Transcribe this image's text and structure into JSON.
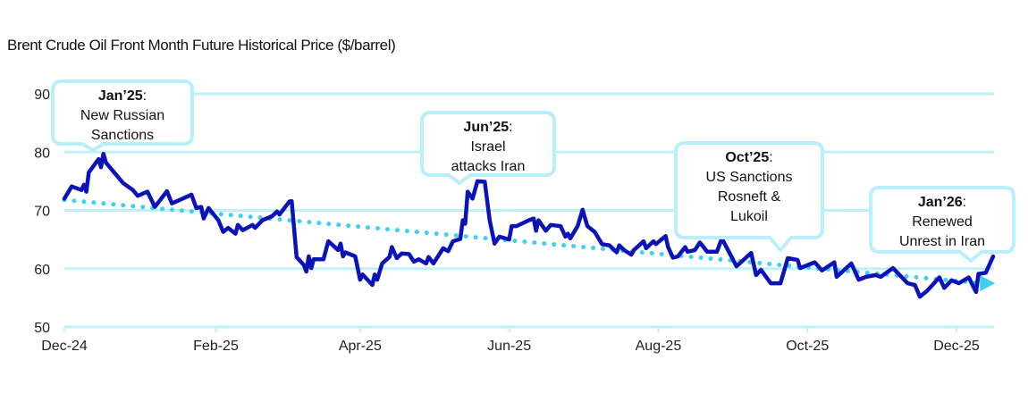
{
  "chart_data": {
    "type": "line",
    "title": "Brent Crude Oil Front Month Future Historical Price ($/barrel)",
    "xlabel": "",
    "ylabel": "",
    "ylim": [
      50,
      90
    ],
    "y_ticks": [
      "50",
      "60",
      "70",
      "80",
      "90"
    ],
    "x_range": [
      "2024-12-01",
      "2025-12-16"
    ],
    "x_ticks": [
      {
        "date": "2024-12-01",
        "label": "Dec-24"
      },
      {
        "date": "2025-02-01",
        "label": "Feb-25"
      },
      {
        "date": "2025-04-01",
        "label": "Apr-25"
      },
      {
        "date": "2025-06-01",
        "label": "Jun-25"
      },
      {
        "date": "2025-08-01",
        "label": "Aug-25"
      },
      {
        "date": "2025-10-01",
        "label": "Oct-25"
      },
      {
        "date": "2025-12-01",
        "label": "Dec-25"
      }
    ],
    "grid": true,
    "colors": {
      "price": "#0b12b8",
      "trend": "#3dd0f0",
      "grid": "#bff0fa",
      "callout_border": "#b9effa"
    },
    "series": [
      {
        "style": "solid",
        "points": [
          [
            "2024-12-01",
            72.0
          ],
          [
            "2024-12-04",
            74.1
          ],
          [
            "2024-12-08",
            73.5
          ],
          [
            "2024-12-09",
            74.4
          ],
          [
            "2024-12-10",
            73.2
          ],
          [
            "2024-12-11",
            76.5
          ],
          [
            "2024-12-15",
            78.8
          ],
          [
            "2024-12-16",
            77.4
          ],
          [
            "2024-12-17",
            79.7
          ],
          [
            "2024-12-18",
            78.2
          ],
          [
            "2024-12-25",
            74.7
          ],
          [
            "2024-12-29",
            73.5
          ],
          [
            "2024-12-31",
            72.5
          ],
          [
            "2025-01-04",
            73.2
          ],
          [
            "2025-01-07",
            70.6
          ],
          [
            "2025-01-12",
            73.3
          ],
          [
            "2025-01-14",
            71.2
          ],
          [
            "2025-01-22",
            72.7
          ],
          [
            "2025-01-24",
            70.4
          ],
          [
            "2025-01-26",
            70.6
          ],
          [
            "2025-01-27",
            68.6
          ],
          [
            "2025-01-29",
            70.4
          ],
          [
            "2025-02-02",
            68.3
          ],
          [
            "2025-02-04",
            66.3
          ],
          [
            "2025-02-06",
            67.0
          ],
          [
            "2025-02-09",
            66.0
          ],
          [
            "2025-02-10",
            67.5
          ],
          [
            "2025-02-12",
            66.6
          ],
          [
            "2025-02-16",
            67.5
          ],
          [
            "2025-02-17",
            67.0
          ],
          [
            "2025-02-20",
            68.3
          ],
          [
            "2025-02-24",
            69.0
          ],
          [
            "2025-02-26",
            69.8
          ],
          [
            "2025-02-27",
            69.3
          ],
          [
            "2025-03-03",
            71.5
          ],
          [
            "2025-03-04",
            71.6
          ],
          [
            "2025-03-06",
            62.0
          ],
          [
            "2025-03-09",
            60.6
          ],
          [
            "2025-03-10",
            59.5
          ],
          [
            "2025-03-11",
            62.1
          ],
          [
            "2025-03-12",
            60.1
          ],
          [
            "2025-03-13",
            61.6
          ],
          [
            "2025-03-17",
            61.6
          ],
          [
            "2025-03-19",
            64.7
          ],
          [
            "2025-03-23",
            63.2
          ],
          [
            "2025-03-24",
            64.3
          ],
          [
            "2025-03-25",
            62.1
          ],
          [
            "2025-03-26",
            62.8
          ],
          [
            "2025-03-30",
            62.1
          ],
          [
            "2025-04-01",
            58.1
          ],
          [
            "2025-04-02",
            59.0
          ],
          [
            "2025-04-06",
            57.2
          ],
          [
            "2025-04-07",
            59.0
          ],
          [
            "2025-04-08",
            58.1
          ],
          [
            "2025-04-10",
            60.9
          ],
          [
            "2025-04-13",
            62.0
          ],
          [
            "2025-04-14",
            63.7
          ],
          [
            "2025-04-16",
            61.8
          ],
          [
            "2025-04-18",
            62.6
          ],
          [
            "2025-04-21",
            62.5
          ],
          [
            "2025-04-23",
            61.2
          ],
          [
            "2025-04-25",
            61.6
          ],
          [
            "2025-04-28",
            60.9
          ],
          [
            "2025-04-29",
            62.0
          ],
          [
            "2025-05-01",
            60.9
          ],
          [
            "2025-05-05",
            63.5
          ],
          [
            "2025-05-07",
            63.0
          ],
          [
            "2025-05-09",
            64.7
          ],
          [
            "2025-05-12",
            65.1
          ],
          [
            "2025-05-13",
            68.3
          ],
          [
            "2025-05-14",
            67.7
          ],
          [
            "2025-05-15",
            73.2
          ],
          [
            "2025-05-17",
            72.0
          ],
          [
            "2025-05-19",
            75.0
          ],
          [
            "2025-05-22",
            74.9
          ],
          [
            "2025-05-24",
            68.3
          ],
          [
            "2025-05-26",
            64.3
          ],
          [
            "2025-05-28",
            65.5
          ],
          [
            "2025-06-01",
            65.0
          ],
          [
            "2025-06-02",
            67.3
          ],
          [
            "2025-06-04",
            67.3
          ],
          [
            "2025-06-09",
            68.3
          ],
          [
            "2025-06-11",
            68.6
          ],
          [
            "2025-06-12",
            66.5
          ],
          [
            "2025-06-13",
            68.3
          ],
          [
            "2025-06-16",
            66.5
          ],
          [
            "2025-06-18",
            67.5
          ],
          [
            "2025-06-22",
            67.3
          ],
          [
            "2025-06-24",
            65.5
          ],
          [
            "2025-06-25",
            66.0
          ],
          [
            "2025-06-26",
            65.2
          ],
          [
            "2025-06-29",
            67.3
          ],
          [
            "2025-07-01",
            70.1
          ],
          [
            "2025-07-03",
            67.3
          ],
          [
            "2025-07-06",
            66.3
          ],
          [
            "2025-07-09",
            64.2
          ],
          [
            "2025-07-12",
            64.0
          ],
          [
            "2025-07-15",
            62.8
          ],
          [
            "2025-07-16",
            64.0
          ],
          [
            "2025-07-18",
            63.2
          ],
          [
            "2025-07-21",
            62.4
          ],
          [
            "2025-07-22",
            63.2
          ],
          [
            "2025-07-26",
            64.7
          ],
          [
            "2025-07-27",
            63.5
          ],
          [
            "2025-07-30",
            64.7
          ],
          [
            "2025-07-31",
            64.2
          ],
          [
            "2025-08-04",
            65.6
          ],
          [
            "2025-08-05",
            63.7
          ],
          [
            "2025-08-07",
            61.9
          ],
          [
            "2025-08-09",
            62.1
          ],
          [
            "2025-08-12",
            63.7
          ],
          [
            "2025-08-13",
            62.9
          ],
          [
            "2025-08-16",
            63.2
          ],
          [
            "2025-08-18",
            64.5
          ],
          [
            "2025-08-21",
            62.9
          ],
          [
            "2025-08-25",
            62.9
          ],
          [
            "2025-08-27",
            65.2
          ],
          [
            "2025-09-02",
            60.4
          ],
          [
            "2025-09-08",
            62.7
          ],
          [
            "2025-09-10",
            58.9
          ],
          [
            "2025-09-12",
            59.8
          ],
          [
            "2025-09-16",
            57.5
          ],
          [
            "2025-09-20",
            57.5
          ],
          [
            "2025-09-23",
            61.8
          ],
          [
            "2025-09-27",
            61.5
          ],
          [
            "2025-09-28",
            60.1
          ],
          [
            "2025-10-04",
            61.1
          ],
          [
            "2025-10-07",
            59.7
          ],
          [
            "2025-10-12",
            61.1
          ],
          [
            "2025-10-13",
            58.6
          ],
          [
            "2025-10-19",
            60.9
          ],
          [
            "2025-10-22",
            58.1
          ],
          [
            "2025-10-25",
            58.6
          ],
          [
            "2025-10-29",
            58.9
          ],
          [
            "2025-10-31",
            58.6
          ],
          [
            "2025-11-05",
            60.1
          ],
          [
            "2025-11-11",
            57.5
          ],
          [
            "2025-11-14",
            57.2
          ],
          [
            "2025-11-16",
            55.2
          ],
          [
            "2025-11-19",
            56.2
          ],
          [
            "2025-11-24",
            58.5
          ],
          [
            "2025-11-26",
            56.7
          ],
          [
            "2025-11-29",
            58.0
          ],
          [
            "2025-12-02",
            57.5
          ],
          [
            "2025-12-06",
            58.5
          ],
          [
            "2025-12-09",
            56.0
          ],
          [
            "2025-12-10",
            59.1
          ],
          [
            "2025-12-13",
            59.3
          ],
          [
            "2025-12-16",
            62.1
          ]
        ]
      },
      {
        "style": "dotted-trend-arrow",
        "points": [
          [
            "2024-12-01",
            71.8
          ],
          [
            "2025-12-15",
            57.5
          ]
        ]
      }
    ],
    "annotations": [
      {
        "bold": "Jan’25",
        "lines": [
          "New Russian",
          "Sanctions"
        ],
        "date": "2024-12-13",
        "value": 79.7
      },
      {
        "bold": "Jun’25",
        "lines": [
          "Israel",
          "attacks Iran"
        ],
        "date": "2025-05-19",
        "value": 75.0
      },
      {
        "bold": "Oct’25",
        "lines": [
          "US Sanctions",
          "Rosneft &",
          "Lukoil"
        ],
        "date": "2025-10-24",
        "value": 58.6
      },
      {
        "bold": "Jan’26",
        "lines": [
          "Renewed",
          "Unrest in Iran"
        ],
        "date": "2025-12-09",
        "value": 59.0
      }
    ]
  }
}
